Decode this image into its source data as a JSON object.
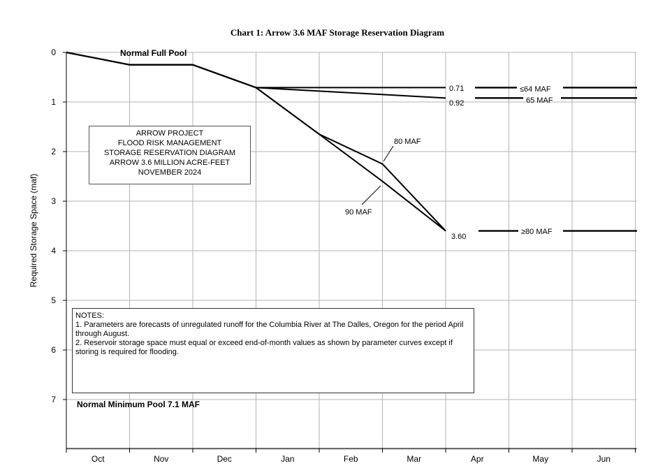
{
  "chart_data": {
    "type": "line",
    "title": "Chart 1: Arrow 3.6 MAF Storage Reservation Diagram",
    "ylabel": "Required Storage Space (maf)",
    "xlabel": "",
    "ylim": [
      0,
      8
    ],
    "y_ticks": [
      "0",
      "1",
      "2",
      "3",
      "4",
      "5",
      "6",
      "7"
    ],
    "months": [
      "Oct",
      "Nov",
      "Dec",
      "Jan",
      "Feb",
      "Mar",
      "Apr",
      "May",
      "Jun"
    ],
    "series": [
      {
        "name": "≤64 MAF",
        "x": [
          0,
          1,
          2,
          3,
          6
        ],
        "y": [
          0,
          0.25,
          0.25,
          0.71,
          0.71
        ]
      },
      {
        "name": "65 MAF",
        "x": [
          0,
          1,
          2,
          3,
          6
        ],
        "y": [
          0,
          0.25,
          0.25,
          0.71,
          0.92
        ]
      },
      {
        "name": "80 MAF",
        "x": [
          0,
          1,
          2,
          3,
          4,
          5,
          6
        ],
        "y": [
          0,
          0.25,
          0.25,
          0.71,
          1.65,
          2.25,
          3.6
        ]
      },
      {
        "name": "90 MAF",
        "x": [
          0,
          1,
          2,
          3,
          4,
          5,
          6
        ],
        "y": [
          0,
          0.25,
          0.25,
          0.71,
          1.65,
          2.6,
          3.6
        ]
      }
    ],
    "extensions": [
      {
        "label": "≤64 MAF",
        "value": 0.71
      },
      {
        "label": "65 MAF",
        "value": 0.92
      },
      {
        "label": "≥80 MAF",
        "value": 3.6
      }
    ],
    "value_labels": {
      "v064": "0.71",
      "v065": "0.92",
      "v080": "3.60"
    },
    "annotations": {
      "normal_full_pool": "Normal Full Pool",
      "normal_min_pool": "Normal Minimum Pool 7.1 MAF",
      "maf80": "80 MAF",
      "maf90": "90 MAF"
    }
  },
  "info_box": {
    "lines": [
      "ARROW PROJECT",
      "FLOOD RISK MANAGEMENT",
      "STORAGE RESERVATION DIAGRAM",
      "ARROW 3.6 MILLION ACRE-FEET",
      "NOVEMBER 2024"
    ]
  },
  "notes": {
    "heading": "NOTES:",
    "note1": "1.  Parameters are forecasts of unregulated runoff for the Columbia River at The Dalles, Oregon for the period April through August.",
    "note2": "2.  Reservoir storage space must equal or exceed end-of-month values as shown by parameter curves except if storing is required for flooding."
  }
}
